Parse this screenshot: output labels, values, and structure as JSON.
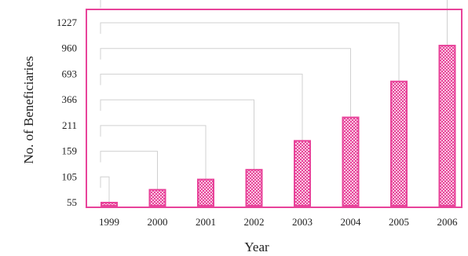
{
  "chart_data": {
    "type": "bar",
    "title": "",
    "xlabel": "Year",
    "ylabel": "No. of  Beneficiaries",
    "categories": [
      "1999",
      "2000",
      "2001",
      "2002",
      "2003",
      "2004",
      "2005",
      "2006"
    ],
    "values": [
      55,
      80,
      100,
      120,
      180,
      260,
      600,
      990
    ],
    "y_ticks": [
      "55",
      "105",
      "159",
      "211",
      "366",
      "693",
      "960",
      "1227"
    ],
    "ylim": [
      55,
      1227
    ],
    "grid": false,
    "legend": "none",
    "colors": {
      "frame": "#e8439a",
      "bar": "#e8439a",
      "bar_fill": "#f3b6d6",
      "guide_line": "#d0d0d0"
    }
  }
}
